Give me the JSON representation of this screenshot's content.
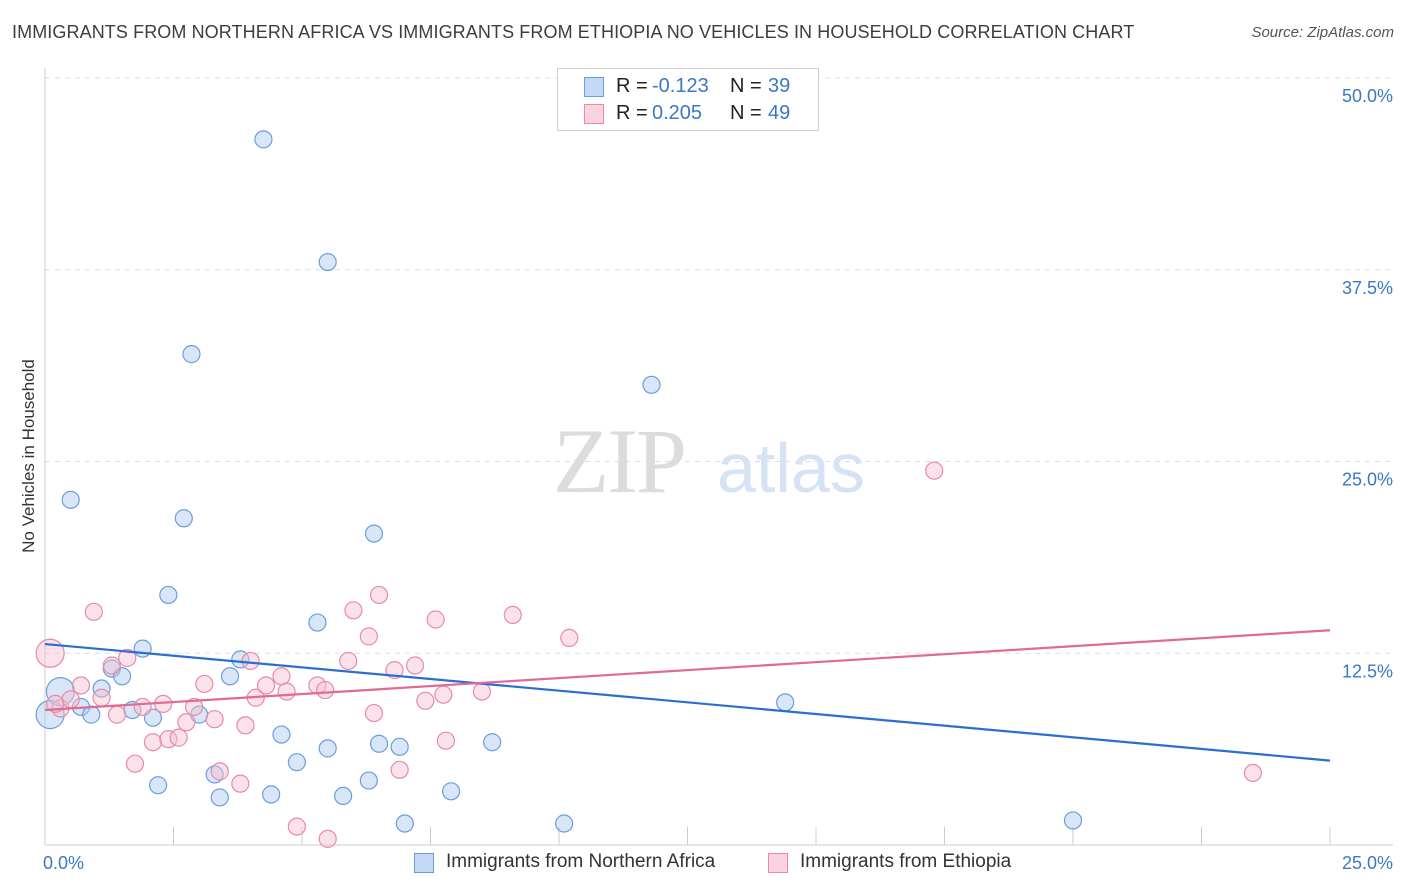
{
  "header": {
    "title": "IMMIGRANTS FROM NORTHERN AFRICA VS IMMIGRANTS FROM ETHIOPIA NO VEHICLES IN HOUSEHOLD CORRELATION CHART",
    "source": "Source: ZipAtlas.com"
  },
  "watermark": {
    "zip": "ZIP",
    "atlas": "atlas"
  },
  "legend_top": [
    {
      "r_label": "R =",
      "r_value": "-0.123",
      "n_label": "N =",
      "n_value": "39",
      "color": "#a9c8f0",
      "border": "#6a9edc"
    },
    {
      "r_label": "R =",
      "r_value": "0.205",
      "n_label": "N =",
      "n_value": "49",
      "color": "#f7bfd0",
      "border": "#e88aa8"
    }
  ],
  "legend_bottom": [
    {
      "label": "Immigrants from Northern Africa",
      "color": "#a9c8f0",
      "border": "#6a9edc"
    },
    {
      "label": "Immigrants from Ethiopia",
      "color": "#f7bfd0",
      "border": "#e88aa8"
    }
  ],
  "chart_data": {
    "type": "scatter",
    "title": "IMMIGRANTS FROM NORTHERN AFRICA VS IMMIGRANTS FROM ETHIOPIA NO VEHICLES IN HOUSEHOLD CORRELATION CHART",
    "xlabel": "",
    "ylabel": "No Vehicles in Household",
    "xlim": [
      0,
      25
    ],
    "ylim": [
      0,
      50
    ],
    "x_tick_labels": [
      "0.0%",
      "25.0%"
    ],
    "y_ticks": [
      12.5,
      25.0,
      37.5,
      50.0
    ],
    "y_tick_labels": [
      "12.5%",
      "25.0%",
      "37.5%",
      "50.0%"
    ],
    "grid": "horizontal dashed",
    "series": [
      {
        "name": "Immigrants from Northern Africa",
        "color": "#6a9edc",
        "fill": "#a9c8f0",
        "trend": {
          "x": [
            0,
            25
          ],
          "y": [
            13.1,
            5.5
          ],
          "color": "#2c6ecf"
        },
        "points": [
          {
            "x": 0.1,
            "y": 8.5,
            "big": true
          },
          {
            "x": 0.3,
            "y": 10.0,
            "big": true
          },
          {
            "x": 0.5,
            "y": 22.5
          },
          {
            "x": 0.7,
            "y": 9.0
          },
          {
            "x": 0.9,
            "y": 8.5
          },
          {
            "x": 1.1,
            "y": 10.2
          },
          {
            "x": 1.3,
            "y": 11.5
          },
          {
            "x": 1.5,
            "y": 11.0
          },
          {
            "x": 1.7,
            "y": 8.8
          },
          {
            "x": 1.9,
            "y": 12.8
          },
          {
            "x": 2.1,
            "y": 8.3
          },
          {
            "x": 2.2,
            "y": 3.9
          },
          {
            "x": 2.4,
            "y": 16.3
          },
          {
            "x": 2.7,
            "y": 21.3
          },
          {
            "x": 2.85,
            "y": 32.0
          },
          {
            "x": 3.0,
            "y": 8.5
          },
          {
            "x": 3.3,
            "y": 4.6
          },
          {
            "x": 3.4,
            "y": 3.1
          },
          {
            "x": 3.6,
            "y": 11.0
          },
          {
            "x": 3.8,
            "y": 12.1
          },
          {
            "x": 4.25,
            "y": 46.0
          },
          {
            "x": 4.4,
            "y": 3.3
          },
          {
            "x": 4.6,
            "y": 7.2
          },
          {
            "x": 4.9,
            "y": 5.4
          },
          {
            "x": 5.3,
            "y": 14.5
          },
          {
            "x": 5.5,
            "y": 6.3
          },
          {
            "x": 5.5,
            "y": 38.0
          },
          {
            "x": 5.8,
            "y": 3.2
          },
          {
            "x": 6.3,
            "y": 4.2
          },
          {
            "x": 6.4,
            "y": 20.3
          },
          {
            "x": 6.5,
            "y": 6.6
          },
          {
            "x": 6.9,
            "y": 6.4
          },
          {
            "x": 7.0,
            "y": 1.4
          },
          {
            "x": 7.9,
            "y": 3.5
          },
          {
            "x": 8.7,
            "y": 6.7
          },
          {
            "x": 10.1,
            "y": 1.4
          },
          {
            "x": 11.8,
            "y": 30.0
          },
          {
            "x": 14.4,
            "y": 9.3
          },
          {
            "x": 20.0,
            "y": 1.6
          }
        ]
      },
      {
        "name": "Immigrants from Ethiopia",
        "color": "#e88aa8",
        "fill": "#f7bfd0",
        "trend": {
          "x": [
            0,
            25
          ],
          "y": [
            8.8,
            14.0
          ],
          "color": "#e06a97"
        },
        "points": [
          {
            "x": 0.1,
            "y": 12.5,
            "big": true
          },
          {
            "x": 0.3,
            "y": 8.9
          },
          {
            "x": 0.5,
            "y": 9.5
          },
          {
            "x": 0.7,
            "y": 10.4
          },
          {
            "x": 0.95,
            "y": 15.2
          },
          {
            "x": 1.1,
            "y": 9.6
          },
          {
            "x": 1.3,
            "y": 11.7
          },
          {
            "x": 1.4,
            "y": 8.5
          },
          {
            "x": 1.6,
            "y": 12.2
          },
          {
            "x": 1.75,
            "y": 5.3
          },
          {
            "x": 1.9,
            "y": 9.0
          },
          {
            "x": 2.1,
            "y": 6.7
          },
          {
            "x": 2.3,
            "y": 9.2
          },
          {
            "x": 2.4,
            "y": 6.9
          },
          {
            "x": 2.6,
            "y": 7.0
          },
          {
            "x": 2.75,
            "y": 8.0
          },
          {
            "x": 2.9,
            "y": 9.0
          },
          {
            "x": 3.1,
            "y": 10.5
          },
          {
            "x": 3.3,
            "y": 8.2
          },
          {
            "x": 3.4,
            "y": 4.8
          },
          {
            "x": 3.8,
            "y": 4.0
          },
          {
            "x": 3.9,
            "y": 7.8
          },
          {
            "x": 4.0,
            "y": 12.0
          },
          {
            "x": 4.1,
            "y": 9.6
          },
          {
            "x": 4.3,
            "y": 10.4
          },
          {
            "x": 4.6,
            "y": 11.0
          },
          {
            "x": 4.7,
            "y": 10.0
          },
          {
            "x": 4.9,
            "y": 1.2
          },
          {
            "x": 5.3,
            "y": 10.4
          },
          {
            "x": 5.45,
            "y": 10.1
          },
          {
            "x": 5.5,
            "y": 0.4
          },
          {
            "x": 5.9,
            "y": 12.0
          },
          {
            "x": 6.0,
            "y": 15.3
          },
          {
            "x": 6.3,
            "y": 13.6
          },
          {
            "x": 6.4,
            "y": 8.6
          },
          {
            "x": 6.5,
            "y": 16.3
          },
          {
            "x": 6.8,
            "y": 11.4
          },
          {
            "x": 6.9,
            "y": 4.9
          },
          {
            "x": 7.2,
            "y": 11.7
          },
          {
            "x": 7.4,
            "y": 9.4
          },
          {
            "x": 7.6,
            "y": 14.7
          },
          {
            "x": 7.75,
            "y": 9.8
          },
          {
            "x": 7.8,
            "y": 6.8
          },
          {
            "x": 8.5,
            "y": 10.0
          },
          {
            "x": 9.1,
            "y": 15.0
          },
          {
            "x": 10.2,
            "y": 13.5
          },
          {
            "x": 17.3,
            "y": 24.4
          },
          {
            "x": 23.5,
            "y": 4.7
          },
          {
            "x": 0.2,
            "y": 9.2
          }
        ]
      }
    ]
  }
}
